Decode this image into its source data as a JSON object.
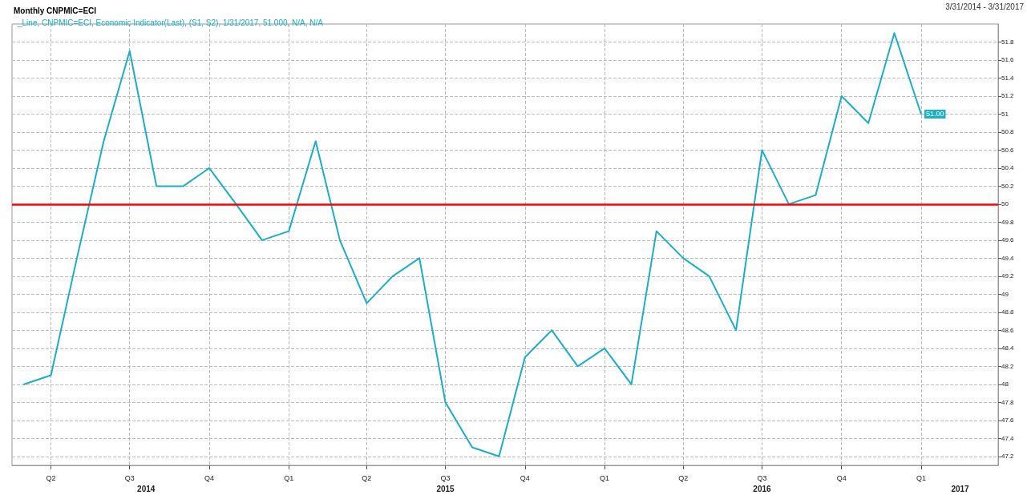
{
  "chart_data": {
    "type": "line",
    "title": "Monthly CNPMIC=ECI",
    "x": [
      "2014-03",
      "2014-04",
      "2014-05",
      "2014-06",
      "2014-07",
      "2014-08",
      "2014-09",
      "2014-10",
      "2014-11",
      "2014-12",
      "2015-01",
      "2015-02",
      "2015-03",
      "2015-04",
      "2015-05",
      "2015-06",
      "2015-07",
      "2015-08",
      "2015-09",
      "2015-10",
      "2015-11",
      "2015-12",
      "2016-01",
      "2016-02",
      "2016-03",
      "2016-04",
      "2016-05",
      "2016-06",
      "2016-07",
      "2016-08",
      "2016-09",
      "2016-10",
      "2016-11",
      "2016-12",
      "2017-01"
    ],
    "series": [
      {
        "name": "_Line, CNPMIC=ECI, Economic Indicator(Last), (S1, S2), 1/31/2017, 51.000, N/A, N/A",
        "color": "#1aaec8",
        "values": [
          48.0,
          48.1,
          49.4,
          50.7,
          51.7,
          50.2,
          50.2,
          50.4,
          50.0,
          49.6,
          49.7,
          50.7,
          49.6,
          48.9,
          49.2,
          49.4,
          47.8,
          47.3,
          47.2,
          48.3,
          48.6,
          48.2,
          48.4,
          48.0,
          49.7,
          49.4,
          49.2,
          48.6,
          50.6,
          50.0,
          50.1,
          51.2,
          50.9,
          51.9,
          51.0
        ],
        "value_labels": [
          null,
          null,
          null,
          null,
          null,
          null,
          null,
          null,
          null,
          null,
          null,
          null,
          null,
          null,
          null,
          null,
          null,
          null,
          null,
          null,
          null,
          null,
          null,
          null,
          null,
          null,
          null,
          null,
          null,
          null,
          null,
          null,
          null,
          null,
          "51.00"
        ]
      }
    ],
    "xlim": [
      "2014-02-15",
      "2017-03-31"
    ],
    "xticks": [
      {
        "value": "2014-04",
        "label": "Q2"
      },
      {
        "value": "2014-07",
        "label": "Q3"
      },
      {
        "value": "2014-10",
        "label": "Q4"
      },
      {
        "value": "2015-01",
        "label": "Q1"
      },
      {
        "value": "2015-04",
        "label": "Q2"
      },
      {
        "value": "2015-07",
        "label": "Q3"
      },
      {
        "value": "2015-10",
        "label": "Q4"
      },
      {
        "value": "2016-01",
        "label": "Q1"
      },
      {
        "value": "2016-04",
        "label": "Q2"
      },
      {
        "value": "2016-07",
        "label": "Q3"
      },
      {
        "value": "2016-10",
        "label": "Q4"
      },
      {
        "value": "2017-01",
        "label": "Q1"
      }
    ],
    "x2lim": [
      "2014-02-15",
      "2017-03-31"
    ],
    "x2ticks": [
      {
        "value": "2014-07-20",
        "label": "2014"
      },
      {
        "value": "2015-07",
        "label": "2015"
      },
      {
        "value": "2016-07",
        "label": "2016"
      },
      {
        "value": "2017-02-15",
        "label": "2017"
      }
    ],
    "ylim": [
      47.1,
      52.0
    ],
    "yticks": [
      47.2,
      47.4,
      47.6,
      47.8,
      48,
      48.2,
      48.4,
      48.6,
      48.8,
      49,
      49.2,
      49.4,
      49.6,
      49.8,
      50,
      50.2,
      50.4,
      50.6,
      50.8,
      51,
      51.2,
      51.4,
      51.6,
      51.8
    ],
    "ref_lines": [
      {
        "axis": "y",
        "value": 50,
        "color": "#ff0000",
        "line_style": "solid"
      }
    ],
    "annotations": [
      "3/31/2014 - 3/31/2017"
    ],
    "grid": true,
    "legend": "top left",
    "marker": "none",
    "line_style": "solid"
  }
}
